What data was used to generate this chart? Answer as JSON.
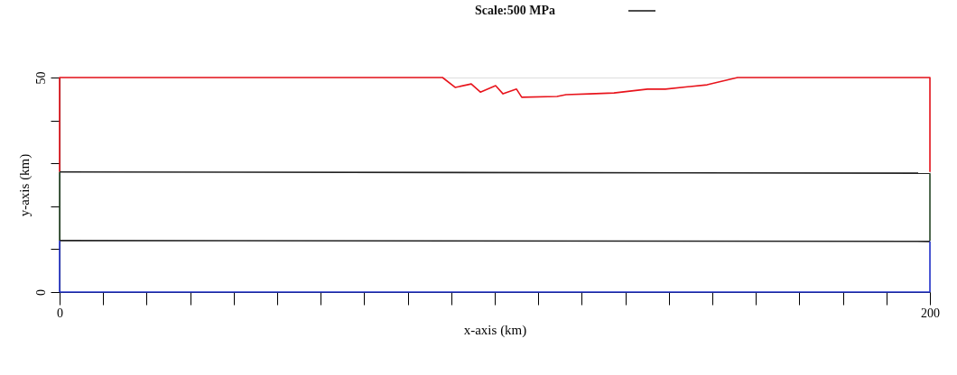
{
  "chart_data": {
    "type": "line",
    "xlabel": "x-axis (km)",
    "ylabel": "y-axis (km)",
    "xlim": [
      0,
      200
    ],
    "ylim": [
      0,
      50
    ],
    "xticks": [
      0,
      {
        "value": 10,
        "label": null
      },
      {
        "value": 20,
        "label": null
      },
      {
        "value": 30,
        "label": null
      },
      {
        "value": 40,
        "label": null
      },
      {
        "value": 50,
        "label": null
      },
      {
        "value": 60,
        "label": null
      },
      {
        "value": 70,
        "label": null
      },
      {
        "value": 80,
        "label": null
      },
      {
        "value": 90,
        "label": null
      },
      {
        "value": 100,
        "label": null
      },
      {
        "value": 110,
        "label": null
      },
      {
        "value": 120,
        "label": null
      },
      {
        "value": 130,
        "label": null
      },
      {
        "value": 140,
        "label": null
      },
      {
        "value": 150,
        "label": null
      },
      {
        "value": 160,
        "label": null
      },
      {
        "value": 170,
        "label": null
      },
      {
        "value": 180,
        "label": null
      },
      {
        "value": 190,
        "label": null
      },
      200
    ],
    "yticks": [
      0,
      {
        "value": 10,
        "label": null
      },
      {
        "value": 20,
        "label": null
      },
      {
        "value": 30,
        "label": null
      },
      {
        "value": 40,
        "label": null
      },
      50
    ],
    "grid": false,
    "legend": false,
    "marker": "none",
    "line_style": "solid",
    "annotations": [
      "Scale:500 MPa"
    ],
    "series": [
      {
        "color": "#e8141c",
        "x": [
          0,
          0,
          88.0,
          90.9,
          94.6,
          96.7,
          100.2,
          101.9,
          105.0,
          106.2,
          114.3,
          116.4,
          121.8,
          127.4,
          135.1,
          139.2,
          148.8,
          155.8,
          185.5,
          200,
          200
        ],
        "values": [
          28,
          50,
          50,
          47.7,
          48.5,
          46.6,
          48.1,
          46.2,
          47.3,
          45.4,
          45.6,
          46.0,
          46.2,
          46.4,
          47.3,
          47.3,
          48.3,
          50,
          50,
          50,
          28
        ]
      },
      {
        "color": "#222222",
        "x": [
          0,
          200
        ],
        "values": [
          28,
          27.7
        ]
      },
      {
        "color": "#2a4a2a",
        "x": [
          0,
          0
        ],
        "values": [
          28,
          12
        ]
      },
      {
        "color": "#2a4a2a",
        "x": [
          200,
          200
        ],
        "values": [
          27.7,
          12
        ]
      },
      {
        "color": "#222222",
        "x": [
          0,
          200
        ],
        "values": [
          12,
          11.8
        ]
      },
      {
        "color": "#2233cc",
        "x": [
          0,
          200
        ],
        "values": [
          0,
          0
        ]
      },
      {
        "color": "#2233cc",
        "x": [
          0,
          0
        ],
        "values": [
          12,
          0
        ]
      },
      {
        "color": "#2233cc",
        "x": [
          200,
          200
        ],
        "values": [
          11.8,
          0
        ]
      }
    ]
  }
}
